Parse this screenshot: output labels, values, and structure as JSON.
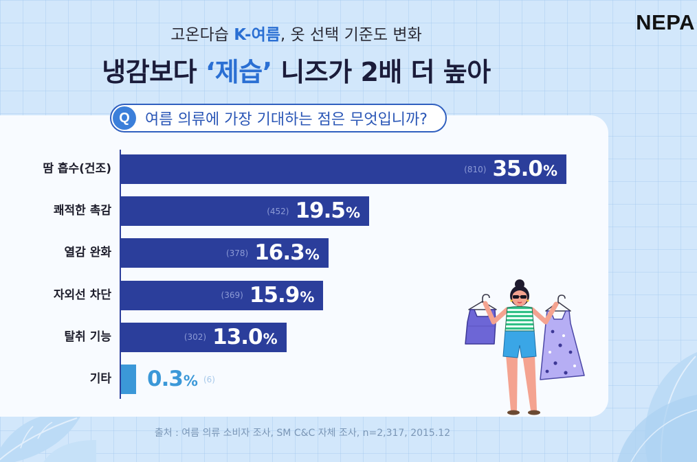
{
  "brand": {
    "logo_text": "NEPA"
  },
  "header": {
    "subtitle": {
      "pre": "고온다습 ",
      "highlight": "K-여름",
      "post": ", 옷 선택 기준도 변화"
    },
    "title": {
      "pre": "냉감보다 ",
      "highlight": "‘제습’",
      "post": " 니즈가 2배 더 높아"
    }
  },
  "question": {
    "badge": "Q",
    "text": "여름 의류에 가장 기대하는 점은 무엇입니까?"
  },
  "chart_data": {
    "type": "bar",
    "orientation": "horizontal",
    "categories": [
      "땀 흡수(건조)",
      "쾌적한 촉감",
      "열감 완화",
      "자외선 차단",
      "탈취 기능",
      "기타"
    ],
    "values": [
      35.0,
      19.5,
      16.3,
      15.9,
      13.0,
      0.3
    ],
    "value_unit": "%",
    "counts": [
      810,
      452,
      378,
      369,
      302,
      6
    ],
    "bar_colors": [
      "#2b3e9b",
      "#2b3e9b",
      "#2b3e9b",
      "#2b3e9b",
      "#2b3e9b",
      "#3b98d8"
    ],
    "grid": false
  },
  "source": {
    "text": "출처 : 여름 의류 소비자 조사, SM C&C 자체 조사, n=2,317, 2015.12"
  },
  "colors": {
    "accent": "#2a6fd3",
    "bar": "#2b3e9b",
    "ink": "#1b1c3a",
    "background": "#d2e7fb",
    "panel": "#f8fbff"
  }
}
